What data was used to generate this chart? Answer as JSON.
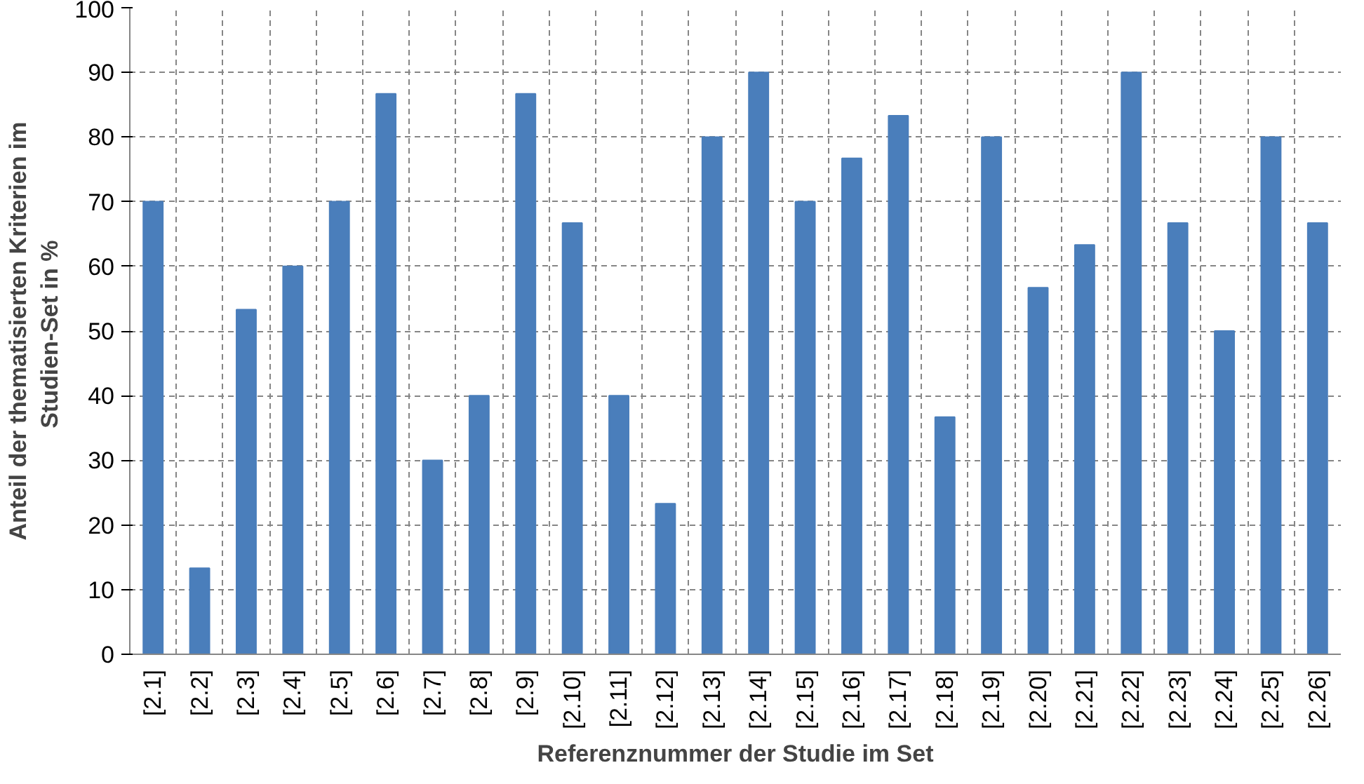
{
  "chart_data": {
    "type": "bar",
    "xlabel": "Referenznummer der Studie im Set",
    "ylabel": "Anteil der thematisierten Kriterien im\nStudien-Set  in %",
    "categories": [
      "[2.1]",
      "[2.2]",
      "[2.3]",
      "[2.4]",
      "[2.5]",
      "[2.6]",
      "[2.7]",
      "[2.8]",
      "[2.9]",
      "[2.10]",
      "[2.11]",
      "[2.12]",
      "[2.13]",
      "[2.14]",
      "[2.15]",
      "[2.16]",
      "[2.17]",
      "[2.18]",
      "[2.19]",
      "[2.20]",
      "[2.21]",
      "[2.22]",
      "[2.23]",
      "[2.24]",
      "[2.25]",
      "[2.26]"
    ],
    "values": [
      70,
      13.3,
      53.3,
      60,
      70,
      86.7,
      30,
      40,
      86.7,
      66.7,
      40,
      23.3,
      80,
      90,
      70,
      76.7,
      83.3,
      36.7,
      80,
      56.7,
      63.3,
      90,
      66.7,
      50,
      80,
      66.7
    ],
    "color": "#4a7ebb",
    "ylim": [
      0,
      100
    ],
    "yticks": [
      0,
      10,
      20,
      30,
      40,
      50,
      60,
      70,
      80,
      90,
      100
    ],
    "grid": true
  }
}
